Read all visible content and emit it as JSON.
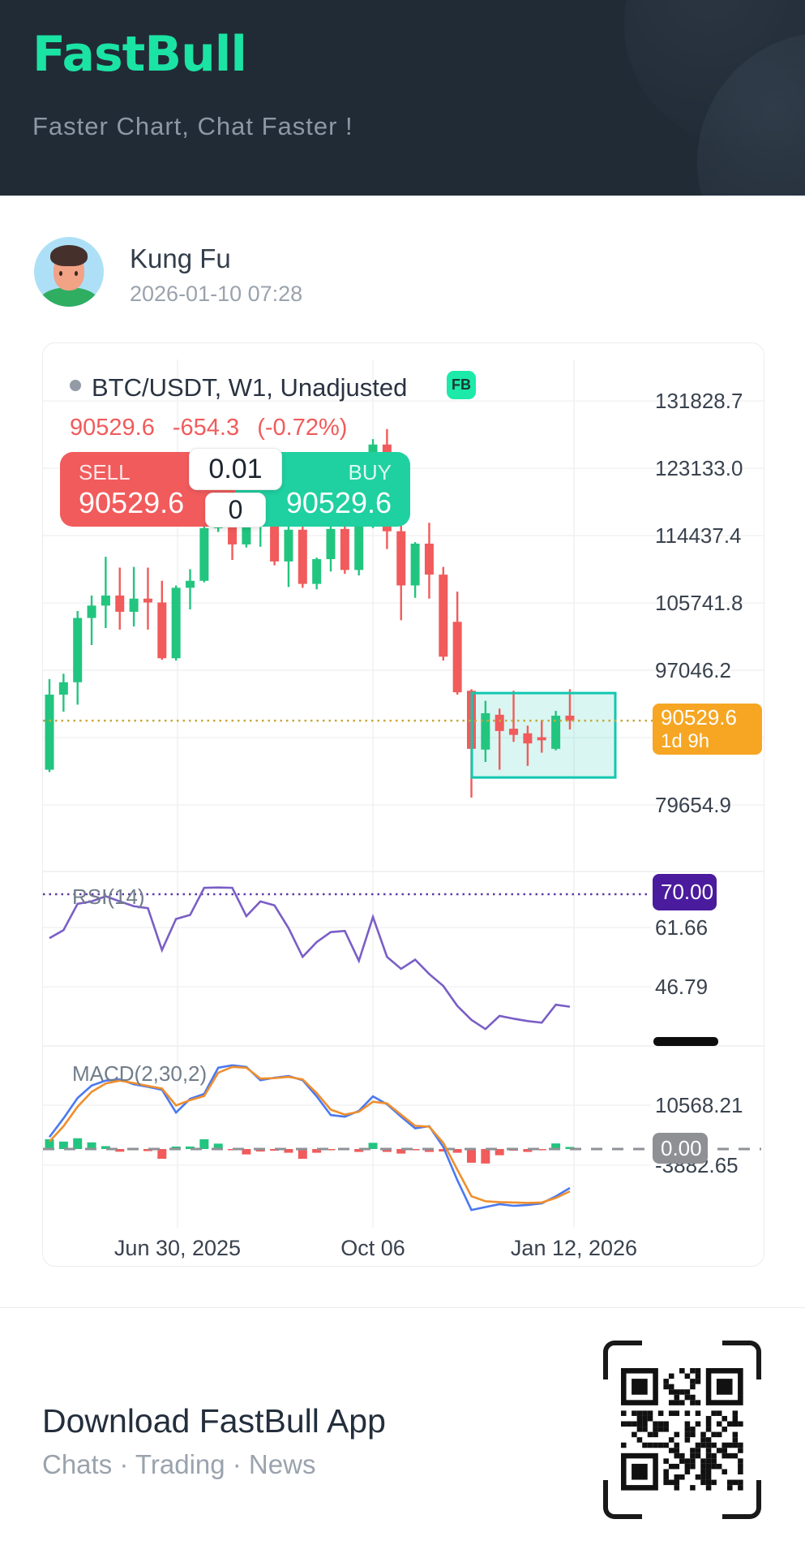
{
  "header": {
    "logo": "FastBull",
    "tagline": "Faster Chart, Chat Faster !"
  },
  "post": {
    "author": "Kung Fu",
    "timestamp": "2026-01-10 07:28"
  },
  "chart": {
    "title": "BTC/USDT, W1, Unadjusted",
    "fb_badge": "FB",
    "price_row": {
      "last": "90529.6",
      "change": "-654.3",
      "change_pct": "(-0.72%)"
    },
    "trade_widget": {
      "sell_label": "SELL",
      "sell_price": "90529.6",
      "buy_label": "BUY",
      "buy_price": "90529.6",
      "amount_top": "0.01",
      "amount_bottom": "0"
    },
    "current_price_badge": {
      "price": "90529.6",
      "countdown": "1d 9h"
    },
    "macd_zero_badge": "0.00",
    "rsi_badge": "70.00"
  },
  "chart_data": {
    "type": "candlestick+rsi+macd",
    "symbol": "BTC/USDT",
    "timeframe": "W1",
    "x_labels": [
      "Jun 30, 2025",
      "Oct 06",
      "Jan 12, 2026"
    ],
    "y_axis_price": [
      131828.7,
      123133.0,
      114437.4,
      105741.8,
      97046.2,
      79654.9
    ],
    "last_price": 90529.6,
    "price_grid_extra": 88350.55,
    "highlight_zone": {
      "price_top": 94100,
      "price_bottom": 83200
    },
    "candles": [
      [
        84200,
        95900,
        83900,
        93900
      ],
      [
        93900,
        96600,
        91700,
        95500
      ],
      [
        95500,
        104700,
        92600,
        103800
      ],
      [
        103800,
        106700,
        100300,
        105400
      ],
      [
        105400,
        111700,
        102500,
        106700
      ],
      [
        106700,
        110300,
        102300,
        104600
      ],
      [
        104600,
        110400,
        102700,
        106300
      ],
      [
        106300,
        110300,
        102300,
        105800
      ],
      [
        105800,
        108600,
        98400,
        98600
      ],
      [
        98600,
        108000,
        98300,
        107700
      ],
      [
        107700,
        110100,
        104900,
        108600
      ],
      [
        108600,
        115600,
        108400,
        115400
      ],
      [
        115400,
        120100,
        114900,
        119200
      ],
      [
        119200,
        119800,
        111300,
        113300
      ],
      [
        113300,
        116300,
        112900,
        115600
      ],
      [
        115600,
        118000,
        113000,
        117200
      ],
      [
        117200,
        118200,
        110600,
        111100
      ],
      [
        111100,
        116000,
        107800,
        115200
      ],
      [
        115200,
        117000,
        107700,
        108200
      ],
      [
        108200,
        111600,
        107500,
        111400
      ],
      [
        111400,
        115800,
        109800,
        115300
      ],
      [
        115300,
        116000,
        109500,
        110000
      ],
      [
        110000,
        121500,
        109300,
        120900
      ],
      [
        120900,
        126900,
        115400,
        126200
      ],
      [
        126200,
        128200,
        112700,
        115000
      ],
      [
        115000,
        115700,
        103500,
        108000
      ],
      [
        108000,
        113600,
        106400,
        113400
      ],
      [
        113400,
        116100,
        106300,
        109400
      ],
      [
        109400,
        110400,
        98300,
        98800
      ],
      [
        103300,
        107200,
        93900,
        94200
      ],
      [
        94400,
        94600,
        80600,
        86900
      ],
      [
        86800,
        93100,
        85200,
        91500
      ],
      [
        91300,
        92100,
        84200,
        89200
      ],
      [
        89500,
        94400,
        87800,
        88700
      ],
      [
        88900,
        89900,
        84700,
        87600
      ],
      [
        88400,
        90600,
        86400,
        88000
      ],
      [
        86900,
        91800,
        86700,
        91183.9
      ],
      [
        91183.9,
        94600,
        89400,
        90529.6
      ]
    ],
    "rsi": {
      "label": "RSI(14)",
      "overbought": 70.0,
      "levels": [
        61.66,
        46.79
      ],
      "values": [
        59,
        61,
        67.6,
        68.2,
        69.5,
        68.2,
        67,
        66.5,
        56,
        63.8,
        64.8,
        71.6,
        71.7,
        71.6,
        64.5,
        68.2,
        67.2,
        61.5,
        54.3,
        58,
        60.5,
        60.8,
        53.3,
        64.3,
        54.3,
        51.3,
        53.6,
        50,
        47,
        42,
        38.5,
        36.2,
        39.5,
        38.8,
        38.2,
        37.8,
        42.3,
        41.8
      ]
    },
    "macd": {
      "label": "MACD(2,30,2)",
      "levels": [
        10568.21,
        0.0,
        -3882.65
      ],
      "macd": [
        2900,
        7400,
        12300,
        15300,
        16500,
        16800,
        15600,
        15000,
        14300,
        8800,
        12100,
        13300,
        19600,
        20200,
        19800,
        16600,
        17200,
        17600,
        16600,
        12700,
        8200,
        7800,
        9200,
        12700,
        10800,
        7800,
        5000,
        5500,
        500,
        -7500,
        -14700,
        -14000,
        -13300,
        -13700,
        -13500,
        -13100,
        -11400,
        -9400
      ],
      "signal": [
        1800,
        5500,
        10200,
        13800,
        15800,
        16500,
        15900,
        15200,
        14600,
        10500,
        11800,
        12800,
        18400,
        19800,
        19600,
        17000,
        17100,
        17400,
        16800,
        13500,
        9500,
        8300,
        9000,
        11400,
        11000,
        8300,
        5600,
        5400,
        1500,
        -5000,
        -11400,
        -12600,
        -12800,
        -12900,
        -13000,
        -12900,
        -11800,
        -10200
      ],
      "histogram": [
        2350,
        1800,
        2600,
        1600,
        700,
        -650,
        -300,
        -500,
        -2350,
        600,
        600,
        2350,
        1300,
        -100,
        -1300,
        -600,
        -400,
        -900,
        -2350,
        -900,
        -100,
        -200,
        -700,
        1500,
        -700,
        -1100,
        -300,
        -700,
        -600,
        -900,
        -3300,
        -3500,
        -1500,
        -400,
        -700,
        -200,
        1350,
        500
      ]
    },
    "colors": {
      "up": "#22c57f",
      "down": "#f15b5b",
      "accent": "#1de9a8",
      "rsi_line": "#7a5ec6",
      "macd_line": "#4a79f0",
      "signal_line": "#ef8e2d",
      "current_price_line": "#c7a93b",
      "highlight_border": "#12c7b0",
      "badge_orange": "#f6a623",
      "badge_purple": "#4a1b9d",
      "badge_gray": "#8f9094"
    }
  },
  "footer": {
    "title": "Download FastBull App",
    "subtitle": "Chats · Trading · News"
  }
}
